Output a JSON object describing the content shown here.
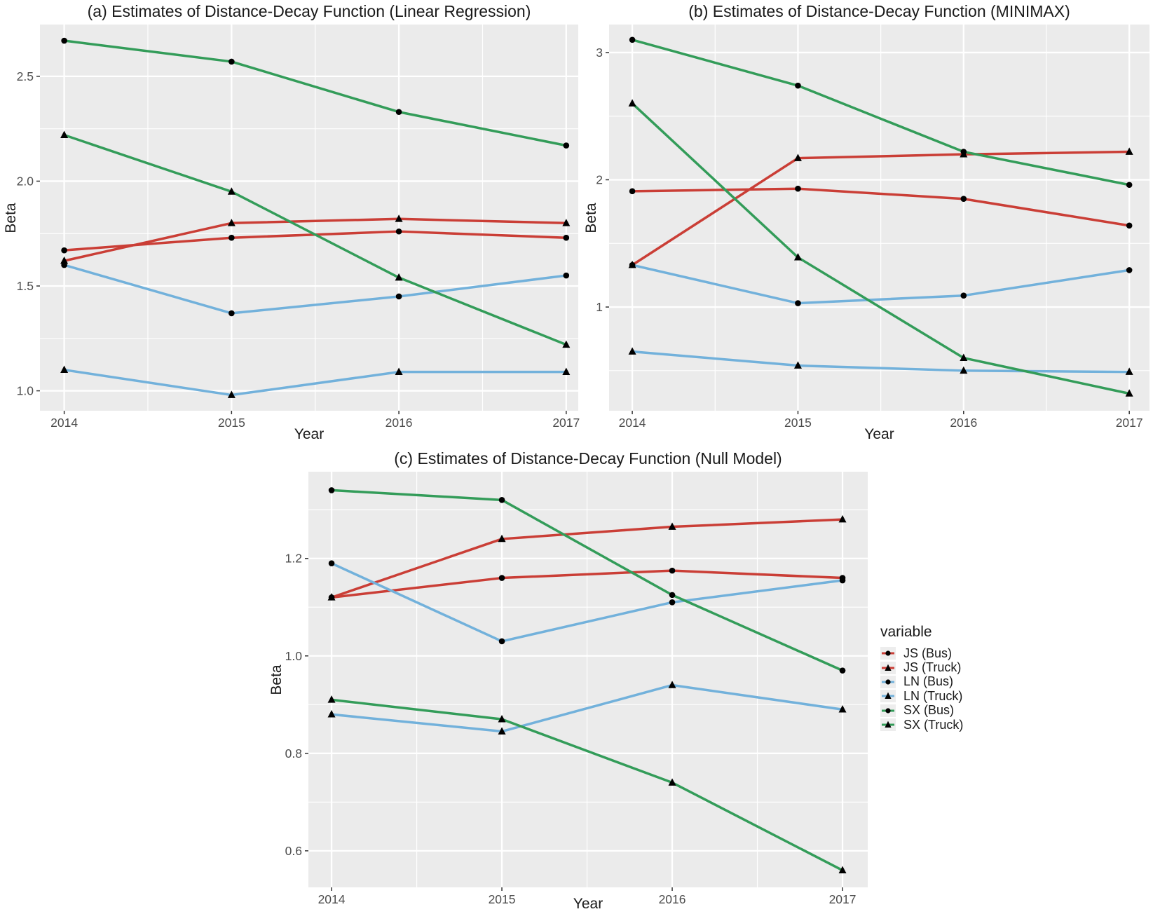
{
  "palette": {
    "red": "#CA3E36",
    "blue": "#72B1DB",
    "green": "#339C59",
    "panel_bg": "#EBEBEB",
    "grid": "#FFFFFF",
    "marker": "#000000",
    "tick_label": "#4D4D4D",
    "tick_mark": "#333333",
    "text": "#1A1A1A",
    "legend_key_bg": "#EDEDED"
  },
  "legend": {
    "title": "variable",
    "items": [
      {
        "label": "JS (Bus)",
        "color": "red",
        "marker": "circle"
      },
      {
        "label": "JS (Truck)",
        "color": "red",
        "marker": "triangle"
      },
      {
        "label": "LN (Bus)",
        "color": "blue",
        "marker": "circle"
      },
      {
        "label": "LN (Truck)",
        "color": "blue",
        "marker": "triangle"
      },
      {
        "label": "SX (Bus)",
        "color": "green",
        "marker": "circle"
      },
      {
        "label": "SX (Truck)",
        "color": "green",
        "marker": "triangle"
      }
    ]
  },
  "chart_data": [
    {
      "id": "a",
      "type": "line",
      "title": "(a) Estimates of Distance-Decay Function (Linear Regression)",
      "xlabel": "Year",
      "ylabel": "Beta",
      "x": [
        2014,
        2015,
        2016,
        2017
      ],
      "xtick_labels": [
        "2014",
        "2015",
        "2016",
        "2017"
      ],
      "xlim": [
        2013.855,
        2017.072
      ],
      "ylim": [
        0.905,
        2.747
      ],
      "ytick_values": [
        1.0,
        1.5,
        2.0,
        2.5
      ],
      "ytick_labels": [
        "1.0",
        "1.5",
        "2.0",
        "2.5"
      ],
      "yminor": [
        1.25,
        1.75,
        2.25,
        2.75
      ],
      "xminor": [
        2014.5,
        2015.5,
        2016.5
      ],
      "grid": true,
      "legend_position": "none",
      "series": [
        {
          "name": "JS (Bus)",
          "color": "red",
          "marker": "circle",
          "values": [
            1.67,
            1.73,
            1.76,
            1.73
          ]
        },
        {
          "name": "JS (Truck)",
          "color": "red",
          "marker": "triangle",
          "values": [
            1.62,
            1.8,
            1.82,
            1.8
          ]
        },
        {
          "name": "LN (Bus)",
          "color": "blue",
          "marker": "circle",
          "values": [
            1.6,
            1.37,
            1.45,
            1.55
          ]
        },
        {
          "name": "LN (Truck)",
          "color": "blue",
          "marker": "triangle",
          "values": [
            1.1,
            0.98,
            1.09,
            1.09
          ]
        },
        {
          "name": "SX (Bus)",
          "color": "green",
          "marker": "circle",
          "values": [
            2.67,
            2.57,
            2.33,
            2.17
          ]
        },
        {
          "name": "SX (Truck)",
          "color": "green",
          "marker": "triangle",
          "values": [
            2.22,
            1.95,
            1.54,
            1.22
          ]
        }
      ]
    },
    {
      "id": "b",
      "type": "line",
      "title": "(b) Estimates of Distance-Decay Function (MINIMAX)",
      "xlabel": "Year",
      "ylabel": "Beta",
      "x": [
        2014,
        2015,
        2016,
        2017
      ],
      "xtick_labels": [
        "2014",
        "2015",
        "2016",
        "2017"
      ],
      "xlim": [
        2013.86,
        2017.122
      ],
      "ylim": [
        0.185,
        3.22
      ],
      "ytick_values": [
        1,
        2,
        3
      ],
      "ytick_labels": [
        "1",
        "2",
        "3"
      ],
      "yminor": [
        0.5,
        1.5,
        2.5
      ],
      "xminor": [
        2014.5,
        2015.5,
        2016.5
      ],
      "grid": true,
      "legend_position": "none",
      "series": [
        {
          "name": "JS (Bus)",
          "color": "red",
          "marker": "circle",
          "values": [
            1.91,
            1.93,
            1.85,
            1.64
          ]
        },
        {
          "name": "JS (Truck)",
          "color": "red",
          "marker": "triangle",
          "values": [
            1.33,
            2.17,
            2.2,
            2.22
          ]
        },
        {
          "name": "LN (Bus)",
          "color": "blue",
          "marker": "circle",
          "values": [
            1.33,
            1.03,
            1.09,
            1.29
          ]
        },
        {
          "name": "LN (Truck)",
          "color": "blue",
          "marker": "triangle",
          "values": [
            0.65,
            0.54,
            0.5,
            0.49
          ]
        },
        {
          "name": "SX (Bus)",
          "color": "green",
          "marker": "circle",
          "values": [
            3.1,
            2.74,
            2.22,
            1.96
          ]
        },
        {
          "name": "SX (Truck)",
          "color": "green",
          "marker": "triangle",
          "values": [
            2.6,
            1.39,
            0.6,
            0.32
          ]
        }
      ]
    },
    {
      "id": "c",
      "type": "line",
      "title": "(c) Estimates of Distance-Decay Function (Null Model)",
      "xlabel": "Year",
      "ylabel": "Beta",
      "x": [
        2014,
        2015,
        2016,
        2017
      ],
      "xtick_labels": [
        "2014",
        "2015",
        "2016",
        "2017"
      ],
      "xlim": [
        2013.864,
        2017.148
      ],
      "ylim": [
        0.525,
        1.378
      ],
      "ytick_values": [
        0.6,
        0.8,
        1.0,
        1.2
      ],
      "ytick_labels": [
        "0.6",
        "0.8",
        "1.0",
        "1.2"
      ],
      "yminor": [
        0.7,
        0.9,
        1.1,
        1.3
      ],
      "xminor": [
        2014.5,
        2015.5,
        2016.5
      ],
      "grid": true,
      "legend_position": "right",
      "series": [
        {
          "name": "JS (Bus)",
          "color": "red",
          "marker": "circle",
          "values": [
            1.12,
            1.16,
            1.175,
            1.16
          ]
        },
        {
          "name": "JS (Truck)",
          "color": "red",
          "marker": "triangle",
          "values": [
            1.12,
            1.24,
            1.265,
            1.28
          ]
        },
        {
          "name": "LN (Bus)",
          "color": "blue",
          "marker": "circle",
          "values": [
            1.19,
            1.03,
            1.11,
            1.155
          ]
        },
        {
          "name": "LN (Truck)",
          "color": "blue",
          "marker": "triangle",
          "values": [
            0.88,
            0.845,
            0.94,
            0.89
          ]
        },
        {
          "name": "SX (Bus)",
          "color": "green",
          "marker": "circle",
          "values": [
            1.34,
            1.32,
            1.125,
            0.97
          ]
        },
        {
          "name": "SX (Truck)",
          "color": "green",
          "marker": "triangle",
          "values": [
            0.91,
            0.87,
            0.74,
            0.56
          ]
        }
      ]
    }
  ]
}
